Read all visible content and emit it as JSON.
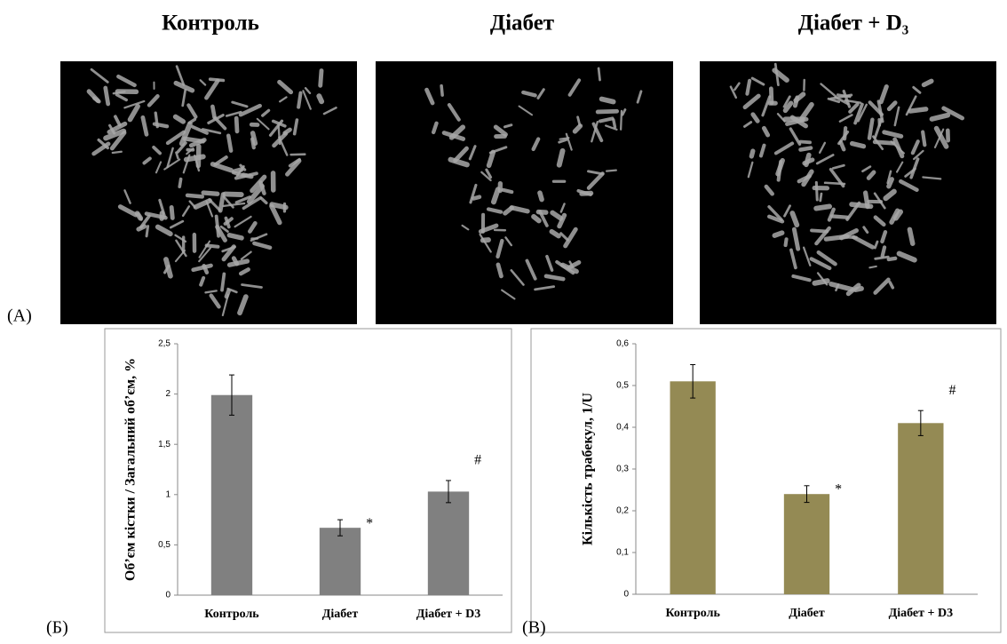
{
  "headers": [
    "Контроль",
    "Діабет",
    "Діабет + D₃"
  ],
  "panel_labels": [
    "(A)",
    "(Б)",
    "(В)"
  ],
  "chart_data": [
    {
      "type": "bar",
      "ylabel": "Об’єм кістки / Загальний об’єм, %",
      "categories": [
        "Контроль",
        "Діабет",
        "Діабет + D3"
      ],
      "series": [
        {
          "color": "#808080",
          "values": [
            1.99,
            0.67,
            1.03
          ],
          "errors": [
            0.2,
            0.08,
            0.11
          ]
        }
      ],
      "annotations": [
        null,
        "*",
        "#"
      ],
      "ylim": [
        0,
        2.5
      ],
      "yticks": [
        0,
        {
          "value": 0.5,
          "label": "0,5"
        },
        1,
        {
          "value": 1.5,
          "label": "1,5"
        },
        2,
        {
          "value": 2.5,
          "label": "2,5"
        }
      ]
    },
    {
      "type": "bar",
      "ylabel": "Кількість трабекул, 1/U",
      "categories": [
        "Контроль",
        "Діабет",
        "Діабет + D3"
      ],
      "series": [
        {
          "color": "#948a54",
          "values": [
            0.51,
            0.24,
            0.41
          ],
          "errors": [
            0.04,
            0.02,
            0.03
          ]
        }
      ],
      "annotations": [
        null,
        "*",
        "#"
      ],
      "ylim": [
        0,
        0.6
      ],
      "yticks": [
        0,
        {
          "value": 0.1,
          "label": "0,1"
        },
        {
          "value": 0.2,
          "label": "0,2"
        },
        {
          "value": 0.3,
          "label": "0,3"
        },
        {
          "value": 0.4,
          "label": "0,4"
        },
        {
          "value": 0.5,
          "label": "0,5"
        },
        {
          "value": 0.6,
          "label": "0,6"
        }
      ]
    }
  ]
}
